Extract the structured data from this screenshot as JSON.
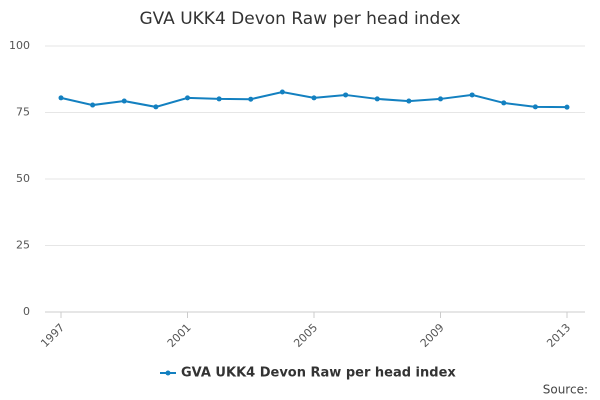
{
  "chart_data": {
    "type": "line",
    "title": "GVA UKK4 Devon Raw per head index",
    "x": [
      1997,
      1998,
      1999,
      2000,
      2001,
      2002,
      2003,
      2004,
      2005,
      2006,
      2007,
      2008,
      2009,
      2010,
      2011,
      2012,
      2013
    ],
    "series": [
      {
        "name": "GVA UKK4 Devon Raw per head index",
        "color": "#1380c0",
        "values": [
          80.5,
          77.8,
          79.3,
          77.1,
          80.5,
          80.1,
          80.0,
          82.7,
          80.5,
          81.6,
          80.1,
          79.3,
          80.1,
          81.6,
          78.6,
          77.1,
          77.0
        ]
      }
    ],
    "xlim": [
      1997,
      2013
    ],
    "xticks": [
      1997,
      2001,
      2005,
      2009,
      2013
    ],
    "ylim": [
      0,
      100
    ],
    "yticks": [
      0,
      25,
      50,
      75,
      100
    ],
    "grid": true,
    "source": "Source:"
  }
}
